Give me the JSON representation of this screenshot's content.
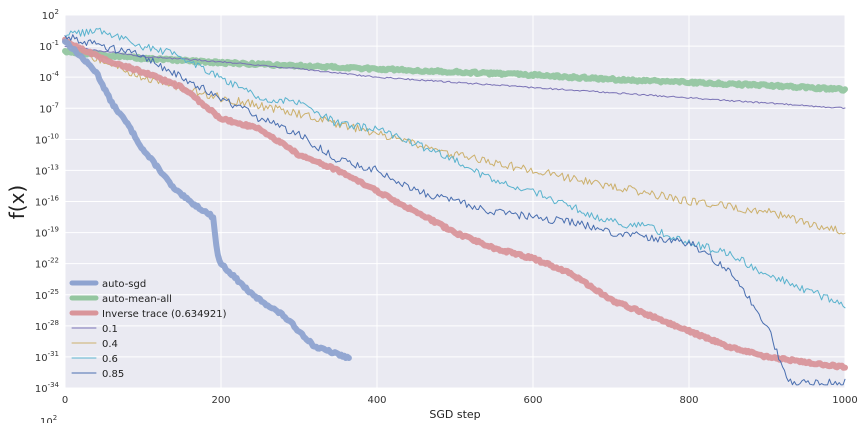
{
  "chart_data": {
    "type": "line",
    "xlabel": "SGD step",
    "ylabel": "f(x)",
    "xlim": [
      0,
      1000
    ],
    "ylim_log10": [
      -34,
      2
    ],
    "y_scale": "log",
    "grid": true,
    "legend_placement": "lower-left",
    "x_ticks": [
      "0",
      "200",
      "400",
      "600",
      "800",
      "1000"
    ],
    "y_ticks": [
      {
        "base": "10",
        "exp": "2"
      },
      {
        "base": "10",
        "exp": "-1"
      },
      {
        "base": "10",
        "exp": "-4"
      },
      {
        "base": "10",
        "exp": "-7"
      },
      {
        "base": "10",
        "exp": "-10"
      },
      {
        "base": "10",
        "exp": "-13"
      },
      {
        "base": "10",
        "exp": "-16"
      },
      {
        "base": "10",
        "exp": "-19"
      },
      {
        "base": "10",
        "exp": "-22"
      },
      {
        "base": "10",
        "exp": "-25"
      },
      {
        "base": "10",
        "exp": "-28"
      },
      {
        "base": "10",
        "exp": "-31"
      },
      {
        "base": "10",
        "exp": "-34"
      }
    ],
    "extra_label": {
      "base": "10",
      "exp": "2"
    },
    "series": [
      {
        "name": "auto-sgd",
        "color": "#8ea3d0",
        "style": "thick",
        "x": [
          0,
          20,
          40,
          60,
          80,
          100,
          120,
          140,
          160,
          180,
          190,
          195,
          200,
          220,
          240,
          260,
          280,
          300,
          320,
          340,
          360,
          365
        ],
        "log10y": [
          -0.5,
          -2,
          -3.5,
          -6.5,
          -8.5,
          -11,
          -12.8,
          -14.8,
          -16,
          -17,
          -17.5,
          -21,
          -22,
          -23.5,
          -25,
          -26,
          -27,
          -28.5,
          -30,
          -30.5,
          -31,
          -31.2
        ]
      },
      {
        "name": "auto-mean-all",
        "color": "#94c6a0",
        "style": "thick",
        "x": [
          0,
          100,
          200,
          300,
          400,
          500,
          600,
          700,
          800,
          900,
          1000
        ],
        "log10y": [
          -1.5,
          -2.2,
          -2.6,
          -2.9,
          -3.2,
          -3.5,
          -3.8,
          -4.2,
          -4.5,
          -4.8,
          -5.2
        ]
      },
      {
        "name": "Inverse trace (0.634921)",
        "color": "#d9959a",
        "style": "thick",
        "x": [
          0,
          50,
          100,
          150,
          200,
          250,
          300,
          350,
          400,
          450,
          500,
          550,
          600,
          650,
          700,
          750,
          800,
          850,
          900,
          950,
          1000
        ],
        "log10y": [
          -0.5,
          -2.3,
          -3.5,
          -5,
          -8,
          -9,
          -11.5,
          -13,
          -15,
          -17,
          -19,
          -20.5,
          -21.5,
          -23,
          -25.5,
          -27,
          -28.5,
          -30,
          -31,
          -31.5,
          -32
        ]
      },
      {
        "name": "0.1",
        "color": "#7b73b6",
        "style": "thin",
        "x": [
          0,
          100,
          200,
          300,
          400,
          500,
          600,
          700,
          800,
          900,
          1000
        ],
        "log10y": [
          -1,
          -2,
          -2.5,
          -3.2,
          -4,
          -4.5,
          -5,
          -5.5,
          -6,
          -6.5,
          -7
        ]
      },
      {
        "name": "0.4",
        "color": "#ccb06c",
        "style": "thin",
        "x": [
          0,
          100,
          200,
          300,
          400,
          500,
          600,
          700,
          800,
          900,
          1000
        ],
        "log10y": [
          -1,
          -4,
          -6,
          -7.5,
          -9.5,
          -11.5,
          -13,
          -14.5,
          -16,
          -17,
          -19
        ]
      },
      {
        "name": "0.6",
        "color": "#5ab3ce",
        "style": "thin",
        "x": [
          0,
          50,
          100,
          150,
          200,
          250,
          300,
          350,
          400,
          450,
          500,
          550,
          600,
          650,
          700,
          750,
          800,
          850,
          900,
          950,
          1000
        ],
        "log10y": [
          0,
          0.5,
          -1,
          -2,
          -4,
          -6,
          -6.5,
          -8.5,
          -9,
          -10.5,
          -12,
          -14,
          -15,
          -16.5,
          -18,
          -18.5,
          -20,
          -21,
          -23,
          -24.5,
          -26
        ]
      },
      {
        "name": "0.85",
        "color": "#4a6fb0",
        "style": "thin",
        "x": [
          0,
          50,
          100,
          150,
          200,
          250,
          300,
          350,
          400,
          450,
          500,
          550,
          600,
          650,
          700,
          750,
          800,
          850,
          900,
          920,
          930,
          1000
        ],
        "log10y": [
          0,
          -1,
          -2,
          -4,
          -6,
          -8,
          -9.5,
          -12,
          -13,
          -15,
          -16,
          -17,
          -17.5,
          -18,
          -19,
          -19.5,
          -20,
          -22.5,
          -28,
          -32,
          -33.5,
          -33.5
        ]
      }
    ]
  }
}
